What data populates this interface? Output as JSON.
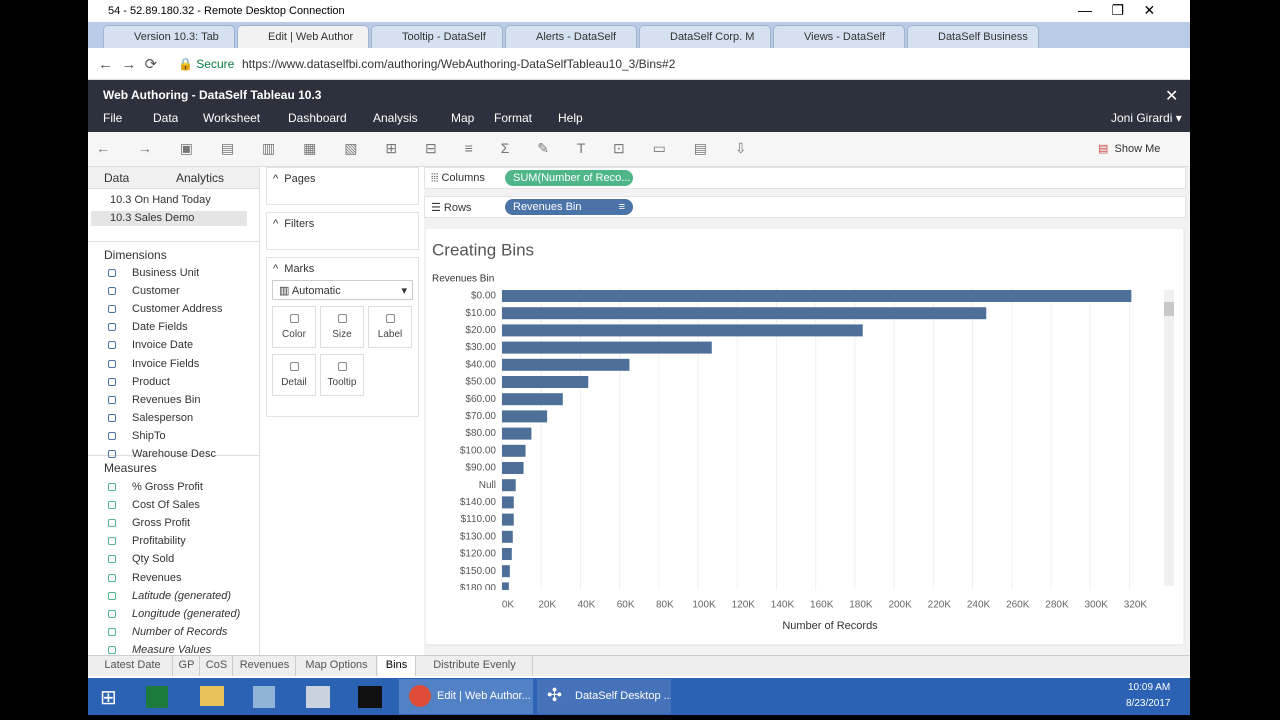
{
  "window_title": "54 - 52.89.180.32 - Remote Desktop Connection",
  "browser": {
    "tabs": [
      "Version 10.3: Tab",
      "Edit | Web Author",
      "Tooltip - DataSelf",
      "Alerts - DataSelf",
      "DataSelf Corp. M",
      "Views - DataSelf",
      "DataSelf Business"
    ],
    "secure": "Secure",
    "url": "https://www.dataselfbi.com/authoring/WebAuthoring-DataSelfTableau10_3/Bins#2"
  },
  "app": {
    "title": "Web Authoring - DataSelf Tableau 10.3",
    "menu": [
      "File",
      "Data",
      "Worksheet",
      "Dashboard",
      "Analysis",
      "Map",
      "Format",
      "Help"
    ],
    "user": "Joni Girardi",
    "show_me": "Show Me"
  },
  "data_pane": {
    "tabs": [
      "Data",
      "Analytics"
    ],
    "sources": [
      "10.3 On Hand Today",
      "10.3 Sales Demo"
    ],
    "dimensions_header": "Dimensions",
    "dimensions": [
      "Business Unit",
      "Customer",
      "Customer Address",
      "Date Fields",
      "Invoice Date",
      "Invoice Fields",
      "Product",
      "Revenues Bin",
      "Salesperson",
      "ShipTo",
      "Warehouse Desc"
    ],
    "measures_header": "Measures",
    "measures": [
      "% Gross Profit",
      "Cost Of Sales",
      "Gross Profit",
      "Profitability",
      "Qty Sold",
      "Revenues",
      "Latitude (generated)",
      "Longitude (generated)",
      "Number of Records",
      "Measure Values"
    ]
  },
  "cards": {
    "pages": "Pages",
    "filters": "Filters",
    "marks": "Marks",
    "mark_type": "Automatic",
    "buttons": [
      "Color",
      "Size",
      "Label",
      "Detail",
      "Tooltip"
    ]
  },
  "shelves": {
    "columns_label": "Columns",
    "columns_pill": "SUM(Number of Reco...",
    "rows_label": "Rows",
    "rows_pill": "Revenues Bin"
  },
  "chart_data": {
    "type": "bar",
    "orientation": "horizontal",
    "title": "Creating Bins",
    "category_header": "Revenues Bin",
    "xlabel": "Number of Records",
    "color": "#4e6f98",
    "grid": true,
    "categories": [
      "$0.00",
      "$10.00",
      "$20.00",
      "$30.00",
      "$40.00",
      "$50.00",
      "$60.00",
      "$70.00",
      "$80.00",
      "$100.00",
      "$90.00",
      "Null",
      "$140.00",
      "$110.00",
      "$130.00",
      "$120.00",
      "$150.00",
      "$180.00"
    ],
    "values": [
      321000,
      247000,
      184000,
      107000,
      65000,
      44000,
      31000,
      23000,
      15000,
      12000,
      11000,
      7000,
      6000,
      6000,
      5500,
      5000,
      4000,
      3500
    ],
    "xlim": [
      0,
      330000
    ],
    "xticks": [
      {
        "value": 0,
        "label": "0K"
      },
      {
        "value": 20000,
        "label": "20K"
      },
      {
        "value": 40000,
        "label": "40K"
      },
      {
        "value": 60000,
        "label": "60K"
      },
      {
        "value": 80000,
        "label": "80K"
      },
      {
        "value": 100000,
        "label": "100K"
      },
      {
        "value": 120000,
        "label": "120K"
      },
      {
        "value": 140000,
        "label": "140K"
      },
      {
        "value": 160000,
        "label": "160K"
      },
      {
        "value": 180000,
        "label": "180K"
      },
      {
        "value": 200000,
        "label": "200K"
      },
      {
        "value": 220000,
        "label": "220K"
      },
      {
        "value": 240000,
        "label": "240K"
      },
      {
        "value": 260000,
        "label": "260K"
      },
      {
        "value": 280000,
        "label": "280K"
      },
      {
        "value": 300000,
        "label": "300K"
      },
      {
        "value": 320000,
        "label": "320K"
      }
    ]
  },
  "sheet_tabs": [
    "Latest Date",
    "GP",
    "CoS",
    "Revenues",
    "Map Options",
    "Bins",
    "Distribute Evenly"
  ],
  "taskbar": {
    "items": [
      "Edit | Web Author...",
      "DataSelf Desktop ..."
    ],
    "time": "10:09 AM",
    "date": "8/23/2017"
  }
}
